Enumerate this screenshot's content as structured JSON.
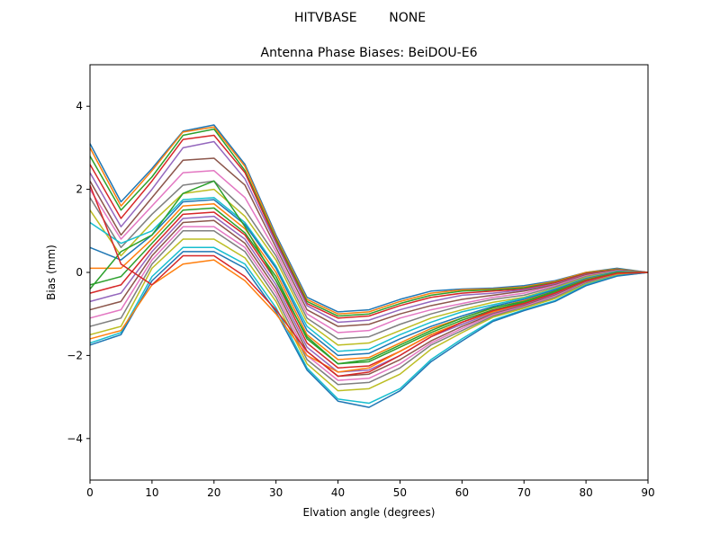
{
  "figure": {
    "suptitle": "HITVBASE        NONE"
  },
  "chart_data": {
    "type": "line",
    "title": "Antenna Phase Biases: BeiDOU-E6",
    "xlabel": "Elvation angle (degrees)",
    "ylabel": "Bias (mm)",
    "xlim": [
      0,
      90
    ],
    "ylim": [
      -5,
      5
    ],
    "x_ticks": [
      0,
      10,
      20,
      30,
      40,
      50,
      60,
      70,
      80,
      90
    ],
    "y_ticks": [
      -4,
      -2,
      0,
      2,
      4
    ],
    "grid": false,
    "legend": "none",
    "x": [
      0,
      5,
      10,
      15,
      20,
      25,
      30,
      35,
      40,
      45,
      50,
      55,
      60,
      65,
      70,
      75,
      80,
      85,
      90
    ],
    "palette": [
      "#1f77b4",
      "#ff7f0e",
      "#2ca02c",
      "#d62728",
      "#9467bd",
      "#8c564b",
      "#e377c2",
      "#7f7f7f",
      "#bcbd22",
      "#17becf"
    ],
    "series": [
      {
        "values": [
          3.1,
          1.7,
          2.5,
          3.4,
          3.55,
          2.6,
          0.9,
          -0.6,
          -0.95,
          -0.9,
          -0.65,
          -0.45,
          -0.4,
          -0.38,
          -0.32,
          -0.2,
          0.0,
          0.1,
          0.0
        ]
      },
      {
        "values": [
          3.0,
          1.6,
          2.45,
          3.38,
          3.5,
          2.55,
          0.85,
          -0.65,
          -1.0,
          -0.95,
          -0.7,
          -0.5,
          -0.42,
          -0.4,
          -0.35,
          -0.22,
          0.0,
          0.08,
          0.0
        ]
      },
      {
        "values": [
          2.8,
          1.5,
          2.3,
          3.3,
          3.45,
          2.45,
          0.8,
          -0.7,
          -1.05,
          -1.0,
          -0.75,
          -0.55,
          -0.45,
          -0.42,
          -0.37,
          -0.24,
          -0.02,
          0.07,
          0.0
        ]
      },
      {
        "values": [
          2.6,
          1.3,
          2.2,
          3.2,
          3.3,
          2.4,
          0.75,
          -0.75,
          -1.1,
          -1.05,
          -0.8,
          -0.6,
          -0.5,
          -0.45,
          -0.4,
          -0.25,
          -0.03,
          0.06,
          0.0
        ]
      },
      {
        "values": [
          2.4,
          1.1,
          2.0,
          3.0,
          3.15,
          2.25,
          0.7,
          -0.8,
          -1.2,
          -1.15,
          -0.9,
          -0.7,
          -0.55,
          -0.5,
          -0.42,
          -0.28,
          -0.05,
          0.05,
          0.0
        ]
      },
      {
        "values": [
          2.2,
          0.9,
          1.8,
          2.7,
          2.75,
          2.1,
          0.6,
          -0.9,
          -1.3,
          -1.25,
          -1.0,
          -0.8,
          -0.65,
          -0.55,
          -0.45,
          -0.3,
          -0.06,
          0.05,
          0.0
        ]
      },
      {
        "values": [
          2.0,
          0.8,
          1.6,
          2.4,
          2.45,
          1.8,
          0.5,
          -1.0,
          -1.45,
          -1.4,
          -1.1,
          -0.9,
          -0.75,
          -0.6,
          -0.5,
          -0.32,
          -0.08,
          0.04,
          0.0
        ]
      },
      {
        "values": [
          1.8,
          0.6,
          1.4,
          2.1,
          2.2,
          1.5,
          0.4,
          -1.1,
          -1.6,
          -1.55,
          -1.25,
          -1.0,
          -0.8,
          -0.65,
          -0.55,
          -0.35,
          -0.1,
          0.03,
          0.0
        ]
      },
      {
        "values": [
          1.5,
          0.4,
          1.2,
          1.9,
          2.0,
          1.35,
          0.3,
          -1.2,
          -1.75,
          -1.7,
          -1.4,
          -1.1,
          -0.9,
          -0.72,
          -0.6,
          -0.38,
          -0.12,
          0.02,
          0.0
        ]
      },
      {
        "values": [
          1.2,
          0.7,
          1.0,
          1.75,
          1.8,
          1.2,
          0.15,
          -1.3,
          -1.9,
          -1.85,
          -1.5,
          -1.2,
          -0.95,
          -0.78,
          -0.62,
          -0.4,
          -0.14,
          0.02,
          0.0
        ]
      },
      {
        "values": [
          0.6,
          0.3,
          0.9,
          1.7,
          1.75,
          1.15,
          0.1,
          -1.4,
          -2.0,
          -1.95,
          -1.6,
          -1.3,
          -1.05,
          -0.82,
          -0.65,
          -0.42,
          -0.15,
          0.01,
          0.0
        ]
      },
      {
        "values": [
          0.1,
          0.1,
          0.8,
          1.6,
          1.65,
          1.05,
          0.0,
          -1.5,
          -2.1,
          -2.05,
          -1.7,
          -1.35,
          -1.1,
          -0.86,
          -0.68,
          -0.45,
          -0.17,
          0.0,
          0.0
        ]
      },
      {
        "values": [
          -0.3,
          -0.1,
          0.7,
          1.5,
          1.55,
          0.95,
          -0.1,
          -1.6,
          -2.2,
          -2.15,
          -1.8,
          -1.45,
          -1.15,
          -0.9,
          -0.72,
          -0.48,
          -0.19,
          -0.01,
          0.0
        ]
      },
      {
        "values": [
          -0.5,
          -0.3,
          0.6,
          1.4,
          1.45,
          0.9,
          -0.2,
          -1.7,
          -2.3,
          -2.25,
          -1.9,
          -1.5,
          -1.2,
          -0.94,
          -0.75,
          -0.5,
          -0.2,
          -0.02,
          0.0
        ]
      },
      {
        "values": [
          -0.7,
          -0.5,
          0.5,
          1.3,
          1.35,
          0.8,
          -0.3,
          -1.8,
          -2.4,
          -2.35,
          -2.0,
          -1.55,
          -1.25,
          -0.97,
          -0.78,
          -0.52,
          -0.22,
          -0.03,
          0.0
        ]
      },
      {
        "values": [
          -0.9,
          -0.7,
          0.4,
          1.2,
          1.25,
          0.7,
          -0.4,
          -1.9,
          -2.5,
          -2.45,
          -2.1,
          -1.65,
          -1.3,
          -1.0,
          -0.8,
          -0.55,
          -0.24,
          -0.04,
          0.0
        ]
      },
      {
        "values": [
          -1.1,
          -0.9,
          0.3,
          1.1,
          1.1,
          0.6,
          -0.5,
          -2.0,
          -2.6,
          -2.55,
          -2.2,
          -1.7,
          -1.35,
          -1.02,
          -0.82,
          -0.57,
          -0.25,
          -0.05,
          0.0
        ]
      },
      {
        "values": [
          -1.3,
          -1.1,
          0.2,
          1.0,
          1.0,
          0.5,
          -0.6,
          -2.1,
          -2.7,
          -2.65,
          -2.3,
          -1.75,
          -1.4,
          -1.05,
          -0.84,
          -0.6,
          -0.26,
          -0.06,
          0.0
        ]
      },
      {
        "values": [
          -1.5,
          -1.3,
          0.1,
          0.8,
          0.8,
          0.35,
          -0.7,
          -2.2,
          -2.85,
          -2.8,
          -2.45,
          -1.85,
          -1.45,
          -1.08,
          -0.86,
          -0.63,
          -0.28,
          -0.07,
          0.0
        ]
      },
      {
        "values": [
          -1.7,
          -1.45,
          -0.1,
          0.6,
          0.6,
          0.2,
          -0.85,
          -2.3,
          -3.05,
          -3.15,
          -2.8,
          -2.1,
          -1.6,
          -1.15,
          -0.9,
          -0.68,
          -0.3,
          -0.08,
          0.0
        ]
      },
      {
        "values": [
          -1.75,
          -1.5,
          -0.2,
          0.5,
          0.5,
          0.1,
          -0.95,
          -2.35,
          -3.1,
          -3.25,
          -2.85,
          -2.15,
          -1.65,
          -1.18,
          -0.92,
          -0.7,
          -0.32,
          -0.09,
          0.0
        ]
      },
      {
        "values": [
          -1.6,
          -1.4,
          -0.3,
          0.2,
          0.3,
          -0.2,
          -1.0,
          -2.0,
          -2.4,
          -2.3,
          -1.9,
          -1.5,
          -1.2,
          -0.95,
          -0.75,
          -0.5,
          -0.2,
          -0.03,
          0.0
        ]
      },
      {
        "values": [
          -0.4,
          0.5,
          0.9,
          1.9,
          2.2,
          1.1,
          -0.2,
          -1.55,
          -2.2,
          -2.1,
          -1.75,
          -1.4,
          -1.1,
          -0.85,
          -0.7,
          -0.45,
          -0.18,
          0.0,
          0.0
        ]
      },
      {
        "values": [
          2.1,
          0.2,
          -0.3,
          0.4,
          0.4,
          -0.1,
          -0.9,
          -1.9,
          -2.5,
          -2.4,
          -2.0,
          -1.55,
          -1.2,
          -0.92,
          -0.75,
          -0.5,
          -0.2,
          -0.02,
          0.0
        ]
      }
    ]
  }
}
